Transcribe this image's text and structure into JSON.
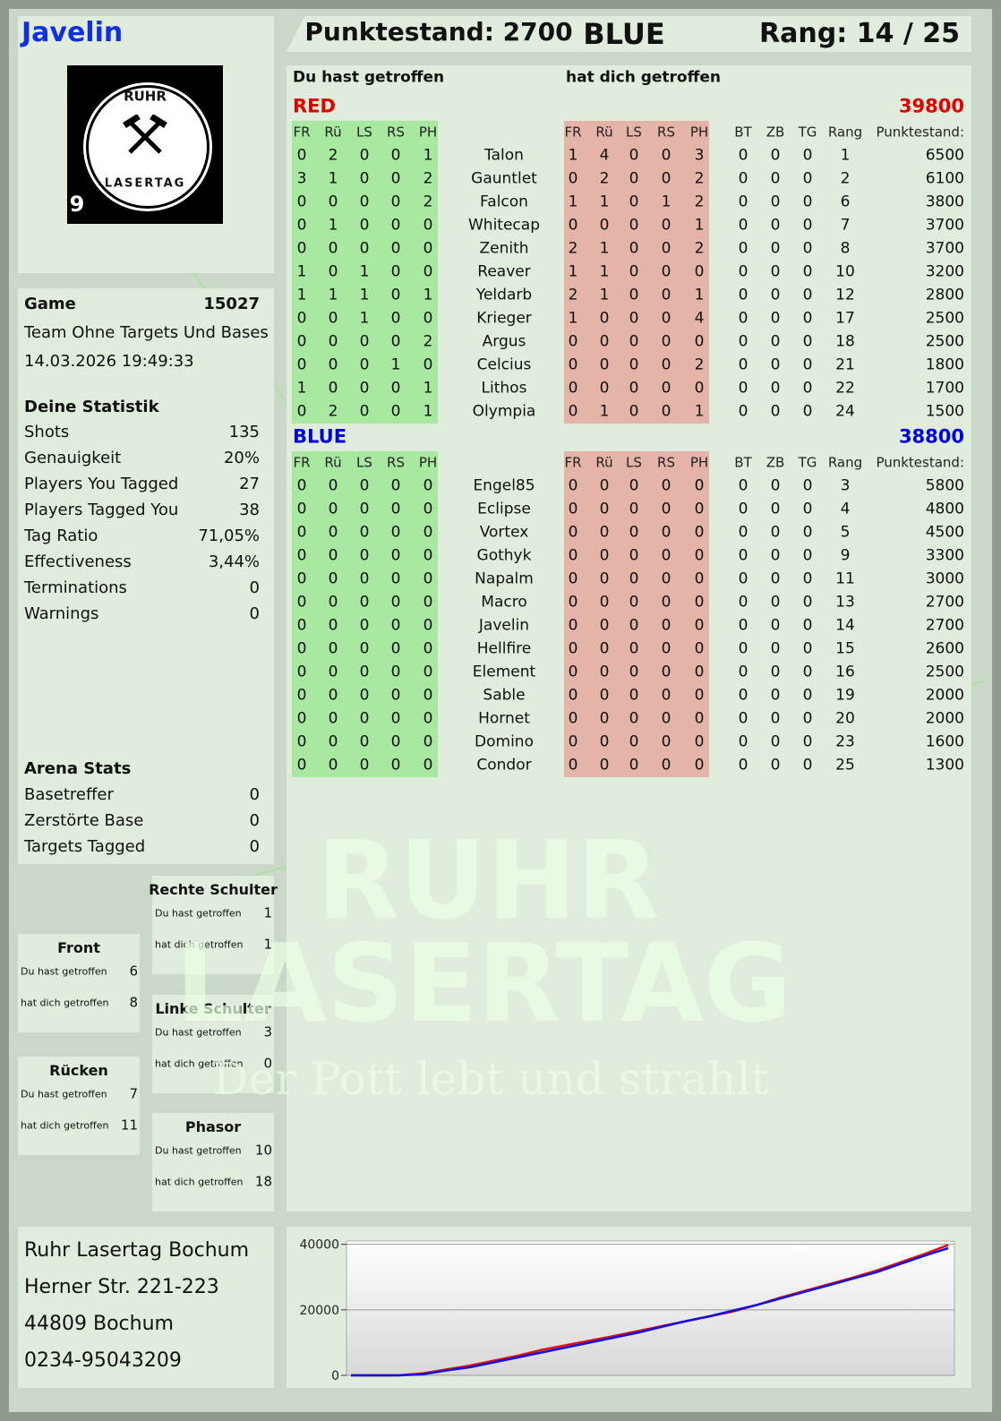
{
  "header": {
    "player": "Javelin",
    "score": "Punktestand: 2700",
    "team": "BLUE",
    "rank": "Rang: 14 / 25"
  },
  "logo": {
    "top": "RUHR",
    "bottom": "LASERTAG",
    "number": "9"
  },
  "game": {
    "label": "Game",
    "id": 15027,
    "mode": "Team Ohne Targets Und Bases",
    "date": "14.03.2026 19:49:33"
  },
  "stats": {
    "title": "Deine Statistik",
    "rows": [
      {
        "label": "Shots",
        "value": 135
      },
      {
        "label": "Genauigkeit",
        "value": "20%"
      },
      {
        "label": "Players You Tagged",
        "value": 27
      },
      {
        "label": "Players Tagged You",
        "value": 38
      },
      {
        "label": "Tag Ratio",
        "value": "71,05%"
      },
      {
        "label": "Effectiveness",
        "value": "3,44%"
      },
      {
        "label": "Terminations",
        "value": 0
      },
      {
        "label": "Warnings",
        "value": 0
      }
    ]
  },
  "arena": {
    "title": "Arena Stats",
    "rows": [
      {
        "label": "Basetreffer",
        "value": 0
      },
      {
        "label": "Zerstörte Base",
        "value": 0
      },
      {
        "label": "Targets Tagged",
        "value": 0
      }
    ]
  },
  "zones": [
    {
      "title": "Rechte Schulter",
      "rows": [
        {
          "label": "Du hast getroffen",
          "value": 1
        },
        {
          "label": "hat dich getroffen",
          "value": 1
        }
      ]
    },
    {
      "title": "Front",
      "rows": [
        {
          "label": "Du hast getroffen",
          "value": 6
        },
        {
          "label": "hat dich getroffen",
          "value": 8
        }
      ]
    },
    {
      "title": "Linke Schulter",
      "rows": [
        {
          "label": "Du hast getroffen",
          "value": 3
        },
        {
          "label": "hat dich getroffen",
          "value": 0
        }
      ]
    },
    {
      "title": "Rücken",
      "rows": [
        {
          "label": "Du hast getroffen",
          "value": 7
        },
        {
          "label": "hat dich getroffen",
          "value": 11
        }
      ]
    },
    {
      "title": "Phasor",
      "rows": [
        {
          "label": "Du hast getroffen",
          "value": 10
        },
        {
          "label": "hat dich getroffen",
          "value": 18
        }
      ]
    }
  ],
  "address": [
    "Ruhr Lasertag Bochum",
    "Herner Str. 221-223",
    "44809 Bochum",
    "0234-95043209"
  ],
  "watermark": {
    "line1": "RUHR",
    "line2": "LASERTAG",
    "tagline": "Der Pott lebt und strahlt"
  },
  "table": {
    "given_heading": "Du hast getroffen",
    "received_heading": "hat dich getroffen",
    "columns": [
      "FR",
      "Rü",
      "LS",
      "RS",
      "PH",
      "FR",
      "Rü",
      "LS",
      "RS",
      "PH",
      "BT",
      "ZB",
      "TG",
      "Rang",
      "Punktestand:"
    ],
    "teams": [
      {
        "name": "RED",
        "color": "#e00000",
        "score": 39800,
        "rows": [
          {
            "name": "Talon",
            "cells": [
              0,
              2,
              0,
              0,
              1,
              1,
              4,
              0,
              0,
              3,
              0,
              0,
              0,
              1,
              6500
            ]
          },
          {
            "name": "Gauntlet",
            "cells": [
              3,
              1,
              0,
              0,
              2,
              0,
              2,
              0,
              0,
              2,
              0,
              0,
              0,
              2,
              6100
            ]
          },
          {
            "name": "Falcon",
            "cells": [
              0,
              0,
              0,
              0,
              2,
              1,
              1,
              0,
              1,
              2,
              0,
              0,
              0,
              6,
              3800
            ]
          },
          {
            "name": "Whitecap",
            "cells": [
              0,
              1,
              0,
              0,
              0,
              0,
              0,
              0,
              0,
              1,
              0,
              0,
              0,
              7,
              3700
            ]
          },
          {
            "name": "Zenith",
            "cells": [
              0,
              0,
              0,
              0,
              0,
              2,
              1,
              0,
              0,
              2,
              0,
              0,
              0,
              8,
              3700
            ]
          },
          {
            "name": "Reaver",
            "cells": [
              1,
              0,
              1,
              0,
              0,
              1,
              1,
              0,
              0,
              0,
              0,
              0,
              0,
              10,
              3200
            ]
          },
          {
            "name": "Yeldarb",
            "cells": [
              1,
              1,
              1,
              0,
              1,
              2,
              1,
              0,
              0,
              1,
              0,
              0,
              0,
              12,
              2800
            ]
          },
          {
            "name": "Krieger",
            "cells": [
              0,
              0,
              1,
              0,
              0,
              1,
              0,
              0,
              0,
              4,
              0,
              0,
              0,
              17,
              2500
            ]
          },
          {
            "name": "Argus",
            "cells": [
              0,
              0,
              0,
              0,
              2,
              0,
              0,
              0,
              0,
              0,
              0,
              0,
              0,
              18,
              2500
            ]
          },
          {
            "name": "Celcius",
            "cells": [
              0,
              0,
              0,
              1,
              0,
              0,
              0,
              0,
              0,
              2,
              0,
              0,
              0,
              21,
              1800
            ]
          },
          {
            "name": "Lithos",
            "cells": [
              1,
              0,
              0,
              0,
              1,
              0,
              0,
              0,
              0,
              0,
              0,
              0,
              0,
              22,
              1700
            ]
          },
          {
            "name": "Olympia",
            "cells": [
              0,
              2,
              0,
              0,
              1,
              0,
              1,
              0,
              0,
              1,
              0,
              0,
              0,
              24,
              1500
            ]
          }
        ]
      },
      {
        "name": "BLUE",
        "color": "#0000dd",
        "score": 38800,
        "rows": [
          {
            "name": "Engel85",
            "cells": [
              0,
              0,
              0,
              0,
              0,
              0,
              0,
              0,
              0,
              0,
              0,
              0,
              0,
              3,
              5800
            ]
          },
          {
            "name": "Eclipse",
            "cells": [
              0,
              0,
              0,
              0,
              0,
              0,
              0,
              0,
              0,
              0,
              0,
              0,
              0,
              4,
              4800
            ]
          },
          {
            "name": "Vortex",
            "cells": [
              0,
              0,
              0,
              0,
              0,
              0,
              0,
              0,
              0,
              0,
              0,
              0,
              0,
              5,
              4500
            ]
          },
          {
            "name": "Gothyk",
            "cells": [
              0,
              0,
              0,
              0,
              0,
              0,
              0,
              0,
              0,
              0,
              0,
              0,
              0,
              9,
              3300
            ]
          },
          {
            "name": "Napalm",
            "cells": [
              0,
              0,
              0,
              0,
              0,
              0,
              0,
              0,
              0,
              0,
              0,
              0,
              0,
              11,
              3000
            ]
          },
          {
            "name": "Macro",
            "cells": [
              0,
              0,
              0,
              0,
              0,
              0,
              0,
              0,
              0,
              0,
              0,
              0,
              0,
              13,
              2700
            ]
          },
          {
            "name": "Javelin",
            "cells": [
              0,
              0,
              0,
              0,
              0,
              0,
              0,
              0,
              0,
              0,
              0,
              0,
              0,
              14,
              2700
            ]
          },
          {
            "name": "Hellfire",
            "cells": [
              0,
              0,
              0,
              0,
              0,
              0,
              0,
              0,
              0,
              0,
              0,
              0,
              0,
              15,
              2600
            ]
          },
          {
            "name": "Element",
            "cells": [
              0,
              0,
              0,
              0,
              0,
              0,
              0,
              0,
              0,
              0,
              0,
              0,
              0,
              16,
              2500
            ]
          },
          {
            "name": "Sable",
            "cells": [
              0,
              0,
              0,
              0,
              0,
              0,
              0,
              0,
              0,
              0,
              0,
              0,
              0,
              19,
              2000
            ]
          },
          {
            "name": "Hornet",
            "cells": [
              0,
              0,
              0,
              0,
              0,
              0,
              0,
              0,
              0,
              0,
              0,
              0,
              0,
              20,
              2000
            ]
          },
          {
            "name": "Domino",
            "cells": [
              0,
              0,
              0,
              0,
              0,
              0,
              0,
              0,
              0,
              0,
              0,
              0,
              0,
              23,
              1600
            ]
          },
          {
            "name": "Condor",
            "cells": [
              0,
              0,
              0,
              0,
              0,
              0,
              0,
              0,
              0,
              0,
              0,
              0,
              0,
              25,
              1300
            ]
          }
        ]
      }
    ]
  },
  "chart_data": {
    "type": "line",
    "ylim": [
      0,
      41000
    ],
    "yticks": [
      0,
      20000,
      40000
    ],
    "grid": true,
    "series": [
      {
        "color": "#e01010",
        "values": [
          0,
          0,
          0,
          600,
          1800,
          3000,
          4500,
          6000,
          7800,
          9200,
          10600,
          12000,
          13500,
          15000,
          16500,
          18000,
          19500,
          21500,
          23800,
          25800,
          27800,
          29800,
          32000,
          34500,
          37000,
          39800
        ]
      },
      {
        "color": "#1010e0",
        "values": [
          0,
          0,
          0,
          300,
          1500,
          2500,
          4000,
          5500,
          7000,
          8500,
          10000,
          11500,
          13000,
          14800,
          16500,
          18000,
          19800,
          21500,
          23500,
          25500,
          27500,
          29500,
          31500,
          34000,
          36500,
          38800
        ]
      }
    ]
  }
}
